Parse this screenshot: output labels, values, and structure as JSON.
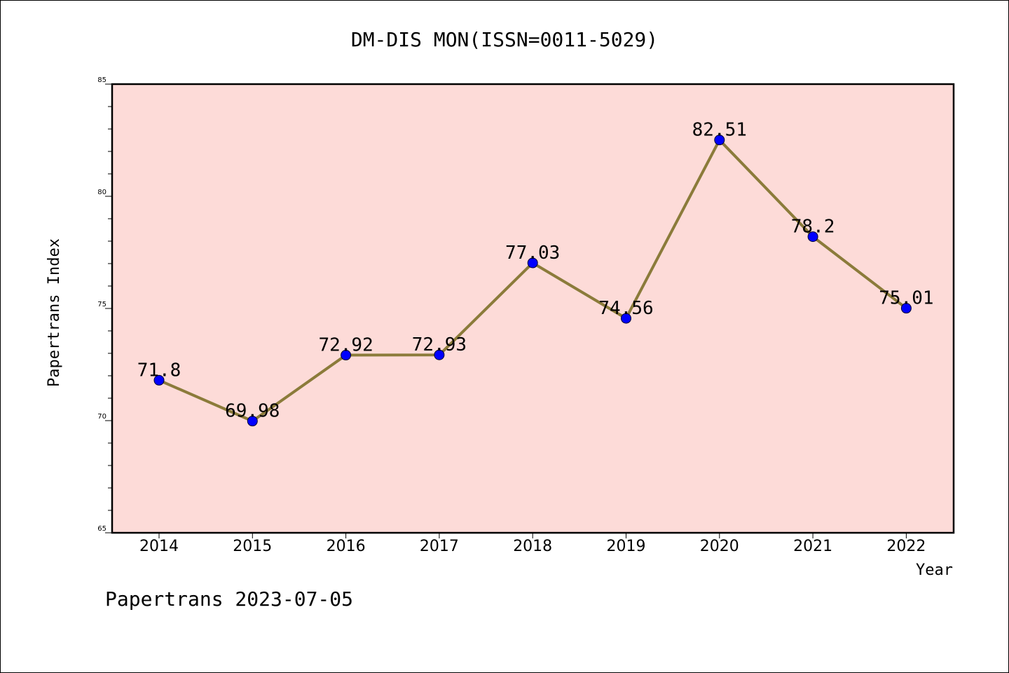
{
  "chart_data": {
    "type": "line",
    "title": "DM-DIS MON(ISSN=0011-5029)",
    "xlabel": "Year",
    "ylabel": "Papertrans Index",
    "categories": [
      "2014",
      "2015",
      "2016",
      "2017",
      "2018",
      "2019",
      "2020",
      "2021",
      "2022"
    ],
    "series": [
      {
        "values": [
          71.8,
          69.98,
          72.92,
          72.93,
          77.03,
          74.56,
          82.51,
          78.2,
          75.01
        ],
        "data_labels": [
          "71.8",
          "69.98",
          "72.92",
          "72.93",
          "77.03",
          "74.56",
          "82.51",
          "78.2",
          "75.01"
        ],
        "line_color": "#8b7b3a",
        "marker_color": "#0000ff"
      }
    ],
    "ylim": [
      65,
      85
    ],
    "y_major_ticks": [
      65,
      70,
      75,
      80,
      85
    ],
    "y_minor_step": 1,
    "grid": false,
    "plot_background": "#fddbd8"
  },
  "footer": "Papertrans 2023-07-05"
}
